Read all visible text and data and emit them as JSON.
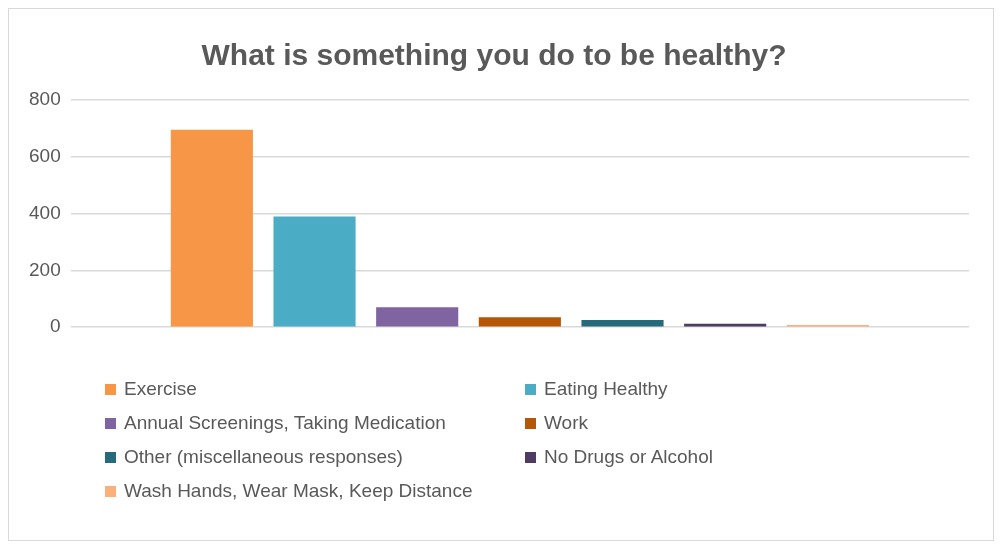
{
  "chart_data": {
    "type": "bar",
    "title": "What is something you do to be healthy?",
    "categories": [
      null
    ],
    "series": [
      {
        "name": "Exercise",
        "color": "#f79646",
        "values": [
          695
        ]
      },
      {
        "name": "Eating Healthy",
        "color": "#4bacc6",
        "values": [
          390
        ]
      },
      {
        "name": "Annual Screenings, Taking Medication",
        "color": "#8064a2",
        "values": [
          70
        ]
      },
      {
        "name": "Work",
        "color": "#b65708",
        "values": [
          35
        ]
      },
      {
        "name": "Other (miscellaneous responses)",
        "color": "#276a7c",
        "values": [
          25
        ]
      },
      {
        "name": "No Drugs or Alcohol",
        "color": "#4d3b62",
        "values": [
          12
        ]
      },
      {
        "name": "Wash Hands, Wear Mask, Keep Distance",
        "color": "#fab07a",
        "values": [
          8
        ]
      }
    ],
    "ylim": [
      0,
      800
    ],
    "yticks": [
      0,
      200,
      400,
      600,
      800
    ],
    "grid": "y",
    "legend": "bottom"
  }
}
